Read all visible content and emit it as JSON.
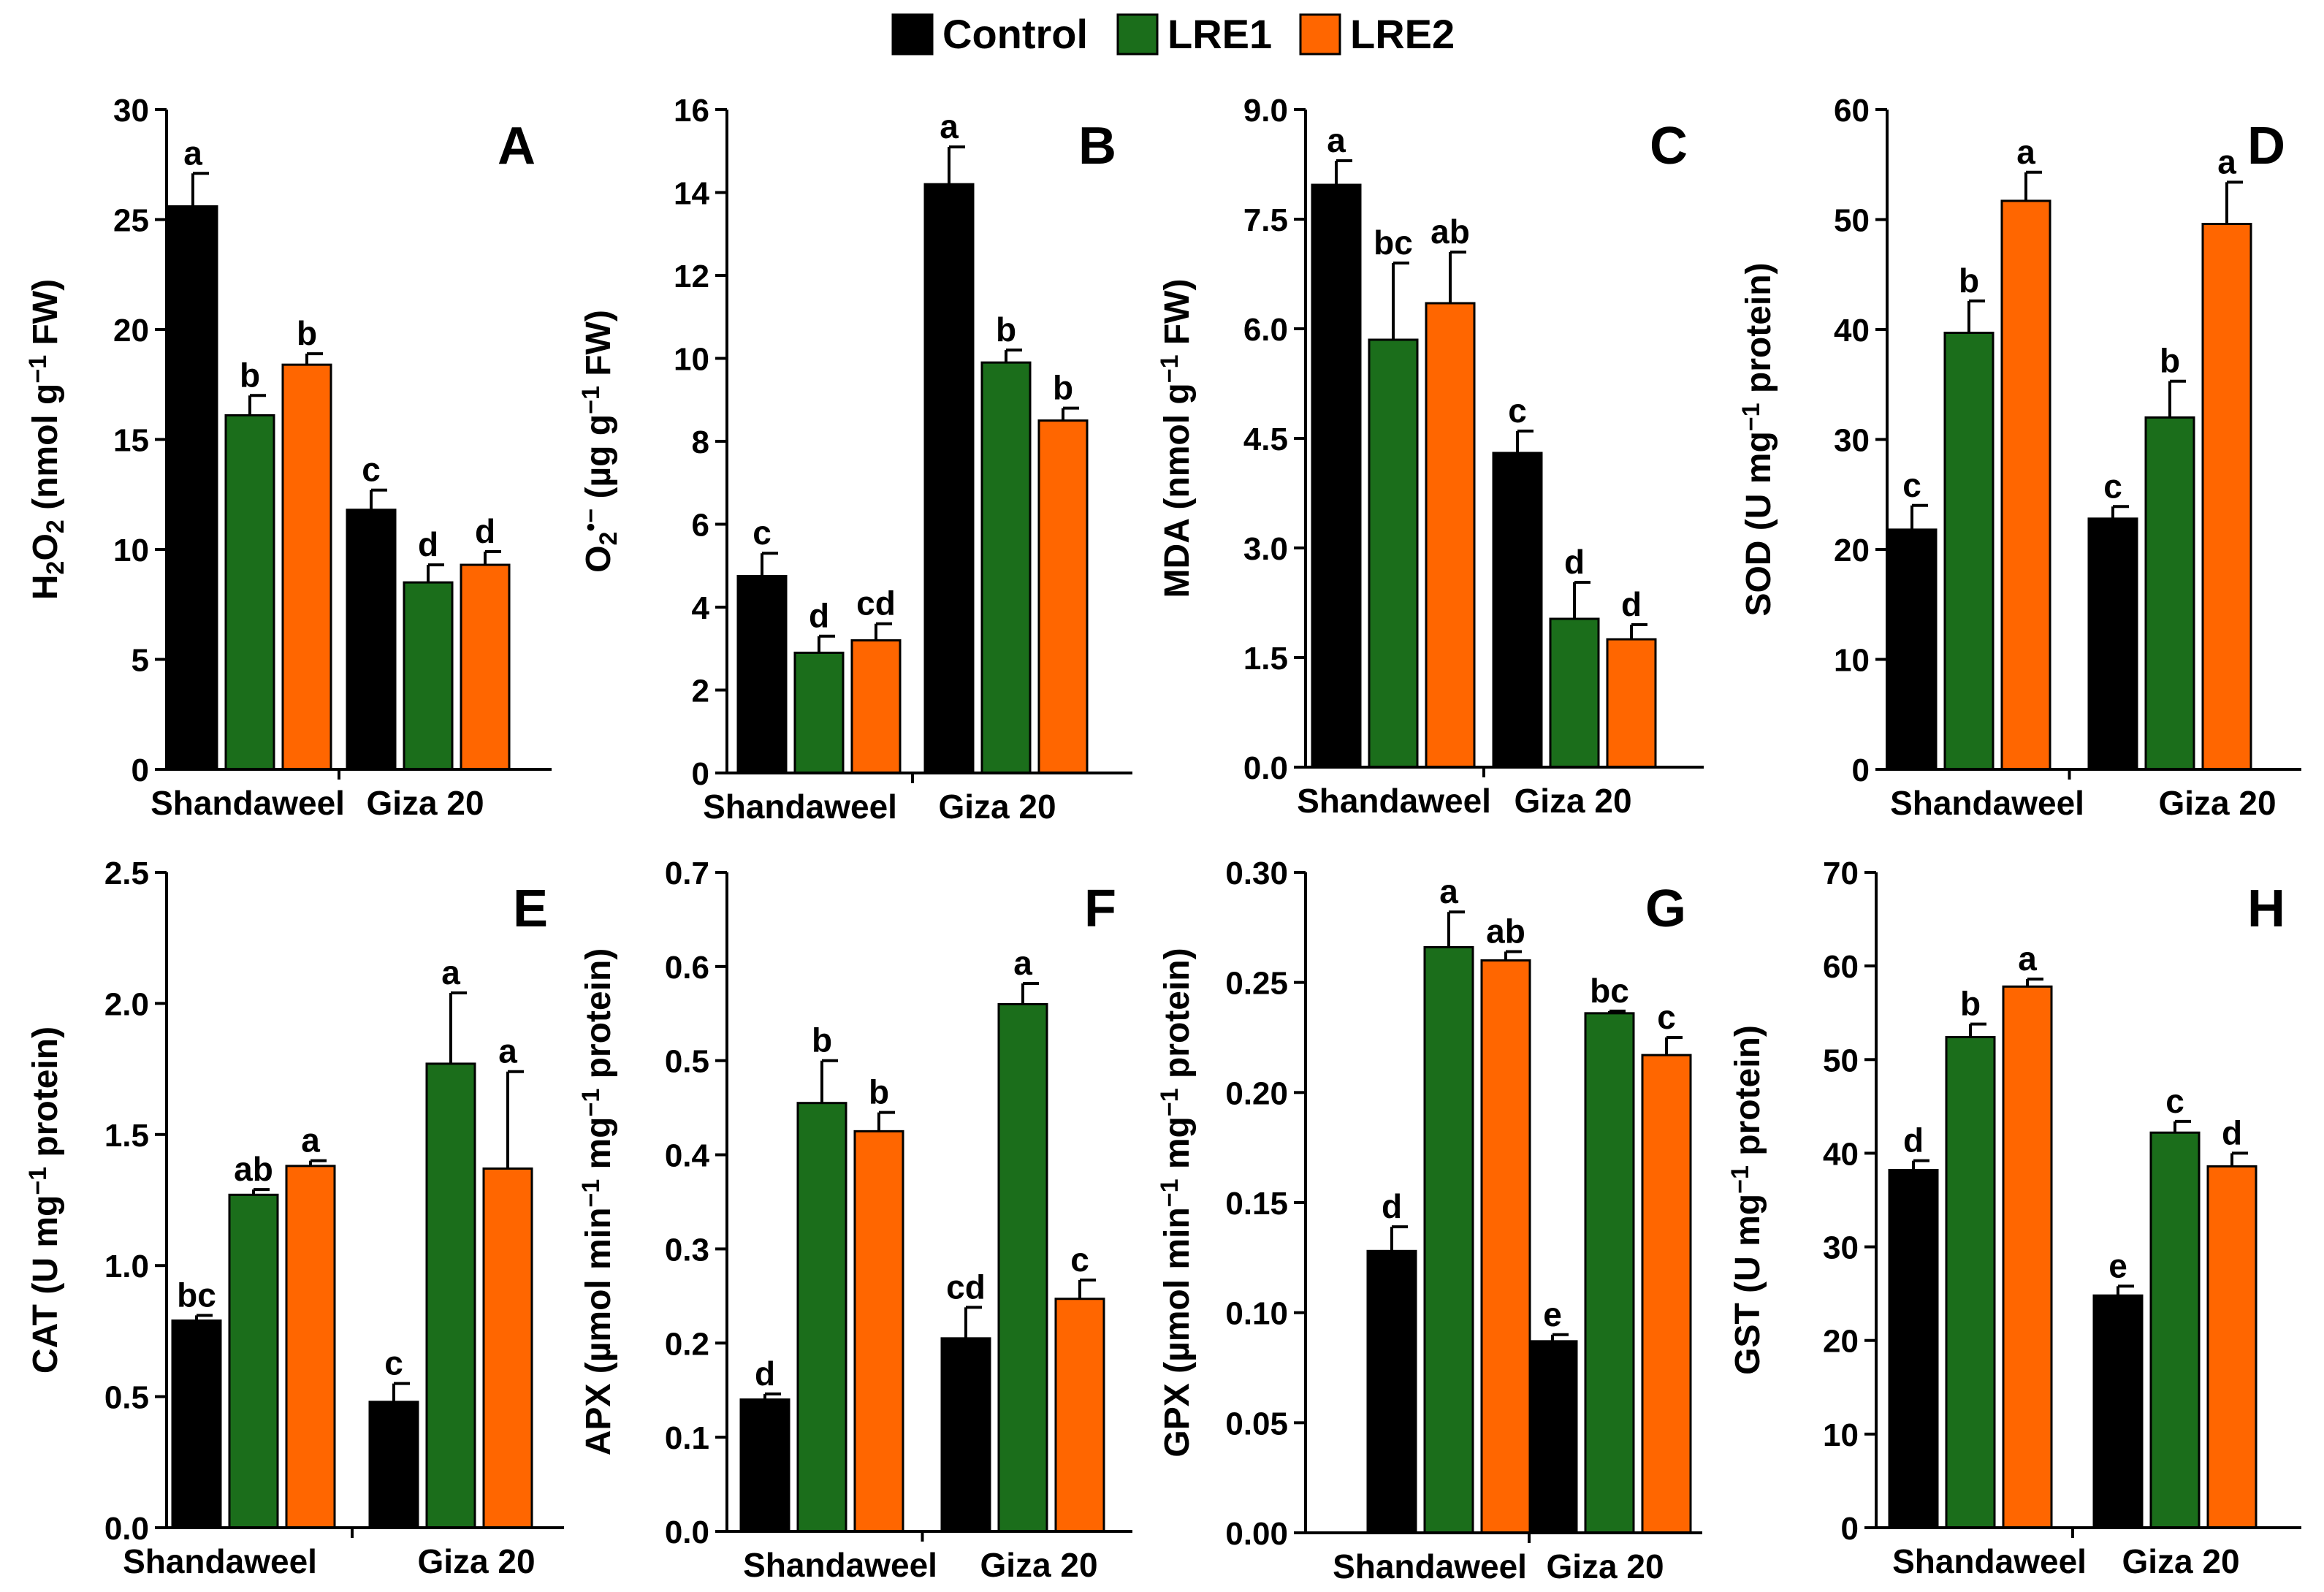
{
  "legend": [
    {
      "name": "Control",
      "color": "#000000"
    },
    {
      "name": "LRE1",
      "color": "#1b6e1b"
    },
    {
      "name": "LRE2",
      "color": "#ff6600"
    }
  ],
  "chart_data": [
    {
      "type": "bar",
      "panel": "A",
      "ylabel_parts": [
        [
          "H",
          false
        ],
        [
          "2",
          "sub"
        ],
        [
          "O",
          false
        ],
        [
          "2",
          "sub"
        ],
        [
          " (nmol g",
          false
        ],
        [
          "−1",
          "sup"
        ],
        [
          " FW)",
          false
        ]
      ],
      "ylim": [
        0,
        30
      ],
      "yticks": [
        "0",
        "5",
        "10",
        "15",
        "20",
        "25",
        "30"
      ],
      "categories": [
        "Shandaweel",
        "Giza 20"
      ],
      "series": [
        {
          "name": "Control",
          "values": [
            25.6,
            11.8
          ],
          "errors": [
            1.5,
            0.9
          ],
          "letters": [
            "a",
            "c"
          ]
        },
        {
          "name": "LRE1",
          "values": [
            16.1,
            8.5
          ],
          "errors": [
            0.9,
            0.8
          ],
          "letters": [
            "b",
            "d"
          ]
        },
        {
          "name": "LRE2",
          "values": [
            18.4,
            9.3
          ],
          "errors": [
            0.5,
            0.6
          ],
          "letters": [
            "b",
            "d"
          ]
        }
      ]
    },
    {
      "type": "bar",
      "panel": "B",
      "ylabel_parts": [
        [
          "O",
          false
        ],
        [
          "2",
          "sub"
        ],
        [
          "•−",
          "sup"
        ],
        [
          "  (µg g",
          false
        ],
        [
          "−1",
          "sup"
        ],
        [
          " FW)",
          false
        ]
      ],
      "ylim": [
        0,
        16
      ],
      "yticks": [
        "0",
        "2",
        "4",
        "6",
        "8",
        "10",
        "12",
        "14",
        "16"
      ],
      "categories": [
        "Shandaweel",
        "Giza 20"
      ],
      "series": [
        {
          "name": "Control",
          "values": [
            4.75,
            14.2
          ],
          "errors": [
            0.55,
            0.9
          ],
          "letters": [
            "c",
            "a"
          ]
        },
        {
          "name": "LRE1",
          "values": [
            2.9,
            9.9
          ],
          "errors": [
            0.4,
            0.3
          ],
          "letters": [
            "d",
            "b"
          ]
        },
        {
          "name": "LRE2",
          "values": [
            3.2,
            8.5
          ],
          "errors": [
            0.4,
            0.3
          ],
          "letters": [
            "cd",
            "b"
          ]
        }
      ]
    },
    {
      "type": "bar",
      "panel": "C",
      "ylabel_parts": [
        [
          "MDA (nmol g",
          false
        ],
        [
          "−1",
          "sup"
        ],
        [
          " FW)",
          false
        ]
      ],
      "ylim": [
        0,
        9
      ],
      "yticks": [
        "0.0",
        "1.5",
        "3.0",
        "4.5",
        "6.0",
        "7.5",
        "9.0"
      ],
      "categories": [
        "Shandaweel",
        "Giza 20"
      ],
      "series": [
        {
          "name": "Control",
          "values": [
            7.97,
            4.3
          ],
          "errors": [
            0.33,
            0.3
          ],
          "letters": [
            "a",
            "c"
          ]
        },
        {
          "name": "LRE1",
          "values": [
            5.85,
            2.03
          ],
          "errors": [
            1.05,
            0.5
          ],
          "letters": [
            "bc",
            "d"
          ]
        },
        {
          "name": "LRE2",
          "values": [
            6.35,
            1.75
          ],
          "errors": [
            0.7,
            0.2
          ],
          "letters": [
            "ab",
            "d"
          ]
        }
      ]
    },
    {
      "type": "bar",
      "panel": "D",
      "ylabel_parts": [
        [
          "SOD (U mg",
          false
        ],
        [
          "−1",
          "sup"
        ],
        [
          " protein)",
          false
        ]
      ],
      "ylim": [
        0,
        60
      ],
      "yticks": [
        "0",
        "10",
        "20",
        "30",
        "40",
        "50",
        "60"
      ],
      "categories": [
        "Shandaweel",
        "Giza 20"
      ],
      "series": [
        {
          "name": "Control",
          "values": [
            21.8,
            22.8
          ],
          "errors": [
            2.2,
            1.1
          ],
          "letters": [
            "c",
            "c"
          ]
        },
        {
          "name": "LRE1",
          "values": [
            39.7,
            32.0
          ],
          "errors": [
            2.9,
            3.3
          ],
          "letters": [
            "b",
            "b"
          ]
        },
        {
          "name": "LRE2",
          "values": [
            51.7,
            49.6
          ],
          "errors": [
            2.6,
            3.8
          ],
          "letters": [
            "a",
            "a"
          ]
        }
      ]
    },
    {
      "type": "bar",
      "panel": "E",
      "ylabel_parts": [
        [
          "CAT (U mg",
          false
        ],
        [
          "−1",
          "sup"
        ],
        [
          " protein)",
          false
        ]
      ],
      "ylim": [
        0,
        2.5
      ],
      "yticks": [
        "0.0",
        "0.5",
        "1.0",
        "1.5",
        "2.0",
        "2.5"
      ],
      "categories": [
        "Shandaweel",
        "Giza 20"
      ],
      "series": [
        {
          "name": "Control",
          "values": [
            0.79,
            0.48
          ],
          "errors": [
            0.02,
            0.07
          ],
          "letters": [
            "bc",
            "c"
          ]
        },
        {
          "name": "LRE1",
          "values": [
            1.27,
            1.77
          ],
          "errors": [
            0.02,
            0.27
          ],
          "letters": [
            "ab",
            "a"
          ]
        },
        {
          "name": "LRE2",
          "values": [
            1.38,
            1.37
          ],
          "errors": [
            0.02,
            0.37
          ],
          "letters": [
            "a",
            "a"
          ]
        }
      ]
    },
    {
      "type": "bar",
      "panel": "F",
      "ylabel_parts": [
        [
          "APX (µmol min",
          false
        ],
        [
          "−1",
          "sup"
        ],
        [
          " mg",
          false
        ],
        [
          "−1",
          "sup"
        ],
        [
          " protein)",
          false
        ]
      ],
      "ylim": [
        0,
        0.7
      ],
      "yticks": [
        "0.0",
        "0.1",
        "0.2",
        "0.3",
        "0.4",
        "0.5",
        "0.6",
        "0.7"
      ],
      "categories": [
        "Shandaweel",
        "Giza 20"
      ],
      "series": [
        {
          "name": "Control",
          "values": [
            0.14,
            0.205
          ],
          "errors": [
            0.006,
            0.033
          ],
          "letters": [
            "d",
            "cd"
          ]
        },
        {
          "name": "LRE1",
          "values": [
            0.455,
            0.56
          ],
          "errors": [
            0.045,
            0.022
          ],
          "letters": [
            "b",
            "a"
          ]
        },
        {
          "name": "LRE2",
          "values": [
            0.425,
            0.247
          ],
          "errors": [
            0.02,
            0.02
          ],
          "letters": [
            "b",
            "c"
          ]
        }
      ]
    },
    {
      "type": "bar",
      "panel": "G",
      "ylabel_parts": [
        [
          "GPX (µmol min",
          false
        ],
        [
          "−1",
          "sup"
        ],
        [
          " mg",
          false
        ],
        [
          "−1",
          "sup"
        ],
        [
          " protein)",
          false
        ]
      ],
      "ylim": [
        0,
        0.3
      ],
      "yticks": [
        "0.00",
        "0.05",
        "0.10",
        "0.15",
        "0.20",
        "0.25",
        "0.30"
      ],
      "categories": [
        "Shandaweel",
        "Giza 20"
      ],
      "series": [
        {
          "name": "Control",
          "values": [
            0.128,
            0.087
          ],
          "errors": [
            0.011,
            0.003
          ],
          "letters": [
            "d",
            "e"
          ]
        },
        {
          "name": "LRE1",
          "values": [
            0.266,
            0.236
          ],
          "errors": [
            0.016,
            0.001
          ],
          "letters": [
            "a",
            "bc"
          ]
        },
        {
          "name": "LRE2",
          "values": [
            0.26,
            0.217
          ],
          "errors": [
            0.004,
            0.008
          ],
          "letters": [
            "ab",
            "c"
          ]
        }
      ]
    },
    {
      "type": "bar",
      "panel": "H",
      "ylabel_parts": [
        [
          "GST (U mg",
          false
        ],
        [
          "−1",
          "sup"
        ],
        [
          " protein)",
          false
        ]
      ],
      "ylim": [
        0,
        70
      ],
      "yticks": [
        "0",
        "10",
        "20",
        "30",
        "40",
        "50",
        "60",
        "70"
      ],
      "categories": [
        "Shandaweel",
        "Giza 20"
      ],
      "series": [
        {
          "name": "Control",
          "values": [
            38.2,
            24.8
          ],
          "errors": [
            1.0,
            1.0
          ],
          "letters": [
            "d",
            "e"
          ]
        },
        {
          "name": "LRE1",
          "values": [
            52.4,
            42.2
          ],
          "errors": [
            1.4,
            1.2
          ],
          "letters": [
            "b",
            "c"
          ]
        },
        {
          "name": "LRE2",
          "values": [
            57.8,
            38.6
          ],
          "errors": [
            0.8,
            1.4
          ],
          "letters": [
            "a",
            "d"
          ]
        }
      ]
    }
  ]
}
